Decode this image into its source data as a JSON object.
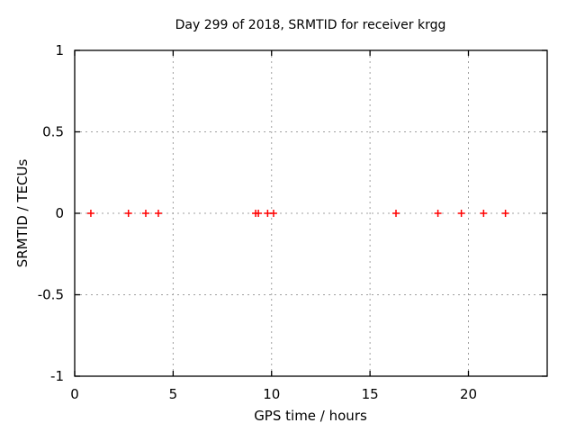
{
  "chart_data": {
    "type": "scatter",
    "title": "Day 299 of 2018, SRMTID for receiver krgg",
    "xlabel": "GPS time / hours",
    "ylabel": "SRMTID / TECUs",
    "xlim": [
      0,
      24
    ],
    "ylim": [
      -1,
      1
    ],
    "xticks": [
      0,
      5,
      10,
      15,
      20
    ],
    "yticks": [
      -1,
      -0.5,
      0,
      0.5,
      1
    ],
    "grid": true,
    "legend": "none",
    "marker": "plus",
    "marker_color": "#ff0000",
    "grid_color": "#a0a0a0",
    "border_color": "#000000",
    "series": [
      {
        "name": "SRMTID",
        "x": [
          0.82,
          2.73,
          3.61,
          4.25,
          9.19,
          9.33,
          9.8,
          10.1,
          16.32,
          18.45,
          19.64,
          20.77,
          21.88
        ],
        "y": [
          0,
          0,
          0,
          0,
          0,
          0,
          0,
          0,
          0,
          0,
          0,
          0,
          0
        ]
      }
    ]
  }
}
